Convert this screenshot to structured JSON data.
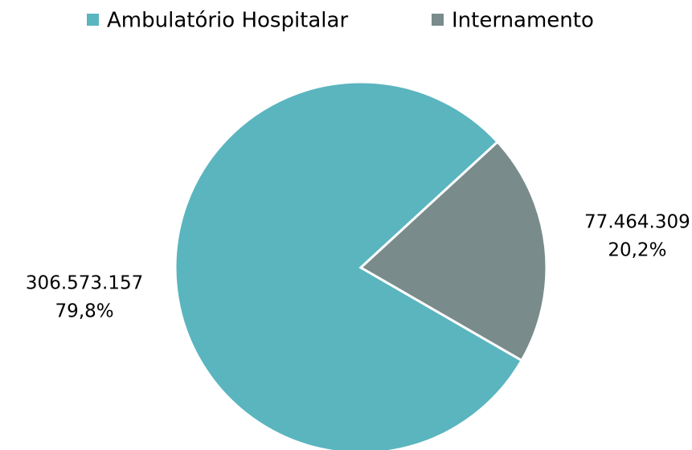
{
  "chart_data": {
    "type": "pie",
    "categories": [
      "Ambulatório Hospitalar",
      "Internamento"
    ],
    "values": [
      306573157,
      77464309
    ],
    "value_labels": [
      "306.573.157",
      "77.464.309"
    ],
    "percents": [
      79.8,
      20.2
    ],
    "percent_labels": [
      "79,8%",
      "20,2%"
    ],
    "colors": [
      "#5ab5bf",
      "#798b8b"
    ],
    "legend": "top"
  }
}
